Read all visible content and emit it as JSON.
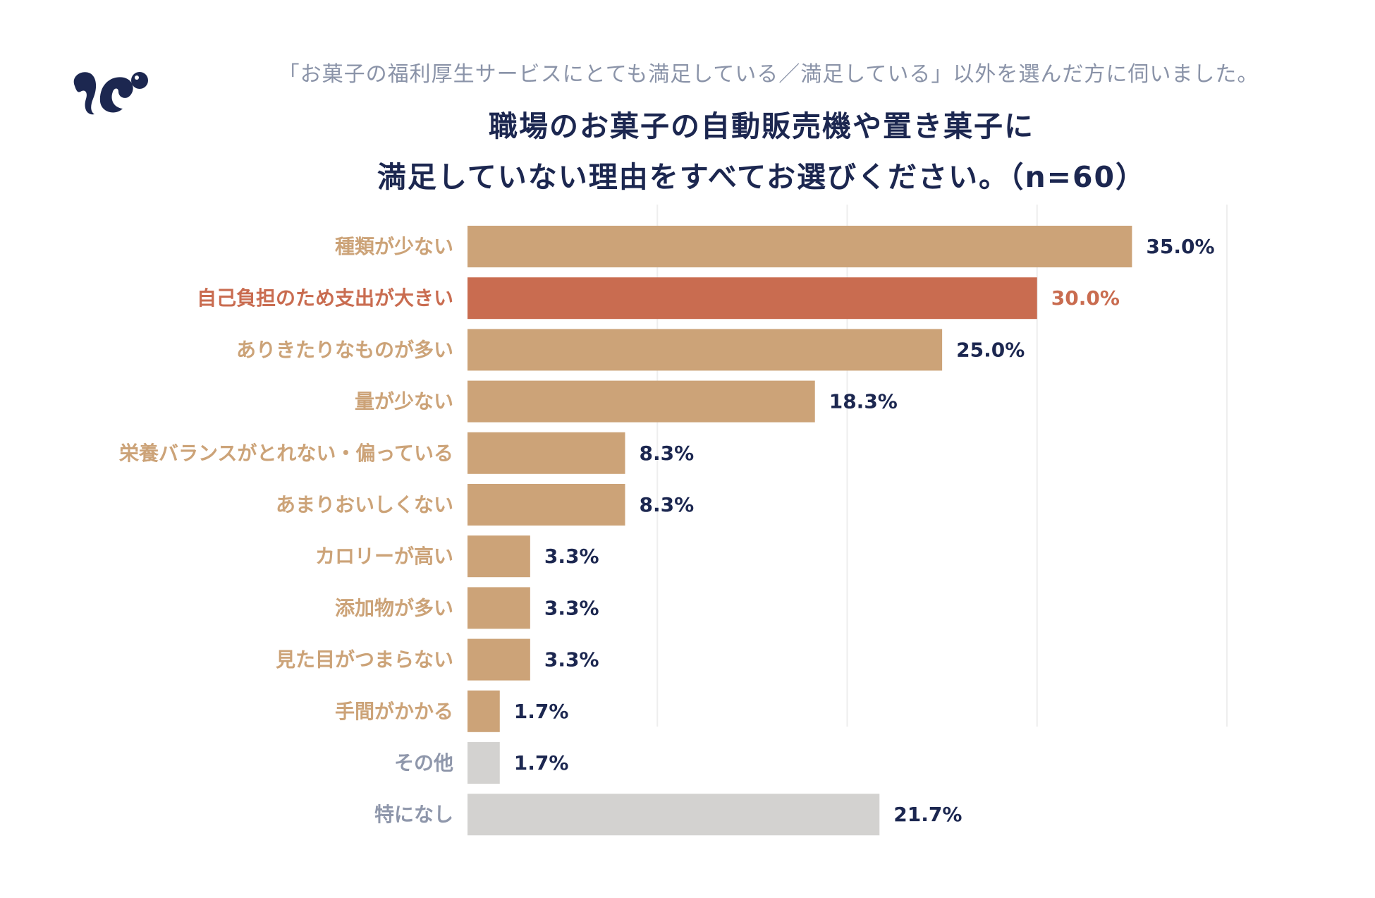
{
  "header": {
    "subtitle": "「お菓子の福利厚生サービスにとても満足している／満足している」以外を選んだ方に伺いました。",
    "title_line1": "職場のお菓子の自動販売機や置き菓子に",
    "title_line2": "満足していない理由をすべてお選びください。（n=60）",
    "logo_icon": "brand-logo-icon"
  },
  "colors": {
    "title": "#1c2750",
    "subtitle": "#8a93a8",
    "bar": "#cca378",
    "bar_highlight": "#c96c50",
    "bar_gray": "#d3d2d0",
    "label": "#cca378",
    "label_highlight": "#c96c50",
    "label_gray": "#8f97ab",
    "value": "#1c2750",
    "grid": "#eeeeee"
  },
  "chart_data": {
    "type": "bar",
    "orientation": "horizontal",
    "title": "職場のお菓子の自動販売機や置き菓子に満足していない理由をすべてお選びください。（n=60）",
    "xlabel": "",
    "ylabel": "",
    "xlim": [
      0,
      40
    ],
    "grid": true,
    "legend": "none",
    "categories": [
      "種類が少ない",
      "自己負担のため支出が大きい",
      "ありきたりなものが多い",
      "量が少ない",
      "栄養バランスがとれない・偏っている",
      "あまりおいしくない",
      "カロリーが高い",
      "添加物が多い",
      "見た目がつまらない",
      "手間がかかる",
      "その他",
      "特になし"
    ],
    "values": [
      35.0,
      30.0,
      25.0,
      18.3,
      8.3,
      8.3,
      3.3,
      3.3,
      3.3,
      1.7,
      1.7,
      21.7
    ],
    "value_labels": [
      "35.0%",
      "30.0%",
      "25.0%",
      "18.3%",
      "8.3%",
      "8.3%",
      "3.3%",
      "3.3%",
      "3.3%",
      "1.7%",
      "1.7%",
      "21.7%"
    ],
    "styles": [
      "normal",
      "highlight",
      "normal",
      "normal",
      "normal",
      "normal",
      "normal",
      "normal",
      "normal",
      "normal",
      "gray",
      "gray"
    ]
  }
}
